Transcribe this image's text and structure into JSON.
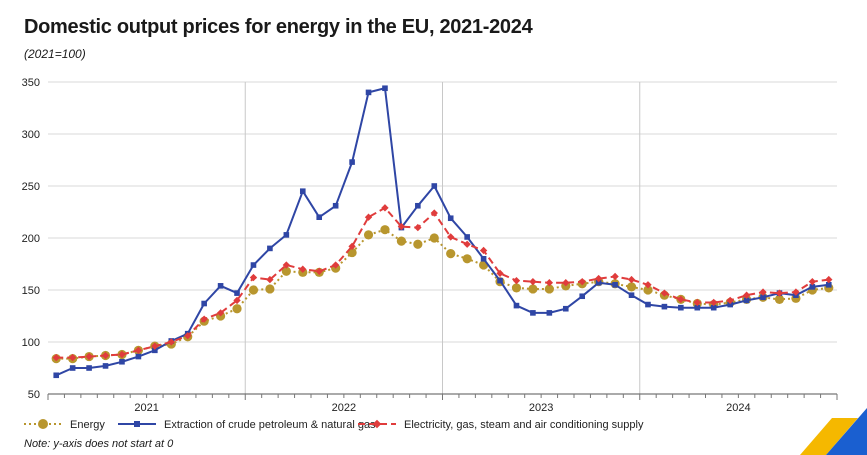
{
  "header": {
    "title": "Domestic output prices for energy in the EU, 2021-2024",
    "subtitle": "(2021=100)"
  },
  "footer": {
    "note": "Note: y-axis does not start at 0"
  },
  "colors": {
    "energy": "#b8962e",
    "extraction": "#2f46a5",
    "electricity": "#e03c3c",
    "grid": "#d9d9d9",
    "logo_yellow": "#f5b800",
    "logo_blue": "#1a5fd0"
  },
  "chart_data": {
    "type": "line",
    "title": "Domestic output prices for energy in the EU, 2021-2024",
    "subtitle": "(2021=100)",
    "xlabel": "",
    "ylabel": "",
    "ylim": [
      50,
      350
    ],
    "yticks": [
      50,
      100,
      150,
      200,
      250,
      300,
      350
    ],
    "grid": true,
    "legend_position": "bottom",
    "year_labels": [
      "2021",
      "2022",
      "2023",
      "2024"
    ],
    "months_per_year": 12,
    "series": [
      {
        "name": "Energy",
        "key": "energy",
        "style": "dotted",
        "marker": "circle",
        "values": [
          84,
          84,
          86,
          87,
          88,
          92,
          96,
          98,
          105,
          120,
          125,
          132,
          150,
          151,
          168,
          167,
          167,
          171,
          186,
          203,
          208,
          197,
          194,
          200,
          185,
          180,
          174,
          158,
          152,
          151,
          151,
          154,
          156,
          158,
          156,
          153,
          150,
          145,
          141,
          137,
          136,
          138,
          141,
          143,
          141,
          142,
          150,
          152
        ]
      },
      {
        "name": "Extraction of crude petroleum & natural gas",
        "key": "extraction",
        "style": "solid",
        "marker": "square",
        "values": [
          68,
          75,
          75,
          77,
          81,
          86,
          92,
          101,
          108,
          137,
          154,
          147,
          174,
          190,
          203,
          245,
          220,
          231,
          273,
          340,
          344,
          210,
          231,
          250,
          219,
          201,
          180,
          159,
          135,
          128,
          128,
          132,
          144,
          157,
          155,
          145,
          136,
          134,
          133,
          133,
          133,
          136,
          140,
          143,
          147,
          145,
          153,
          155
        ]
      },
      {
        "name": "Electricity, gas, steam and air conditioning supply",
        "key": "electricity",
        "style": "dashed",
        "marker": "diamond",
        "values": [
          85,
          85,
          86,
          87,
          88,
          92,
          96,
          100,
          106,
          122,
          128,
          140,
          162,
          160,
          174,
          170,
          168,
          174,
          192,
          220,
          229,
          211,
          210,
          224,
          201,
          194,
          188,
          166,
          159,
          158,
          157,
          157,
          158,
          161,
          163,
          160,
          155,
          147,
          141,
          138,
          138,
          140,
          145,
          148,
          147,
          148,
          158,
          160
        ]
      }
    ]
  }
}
